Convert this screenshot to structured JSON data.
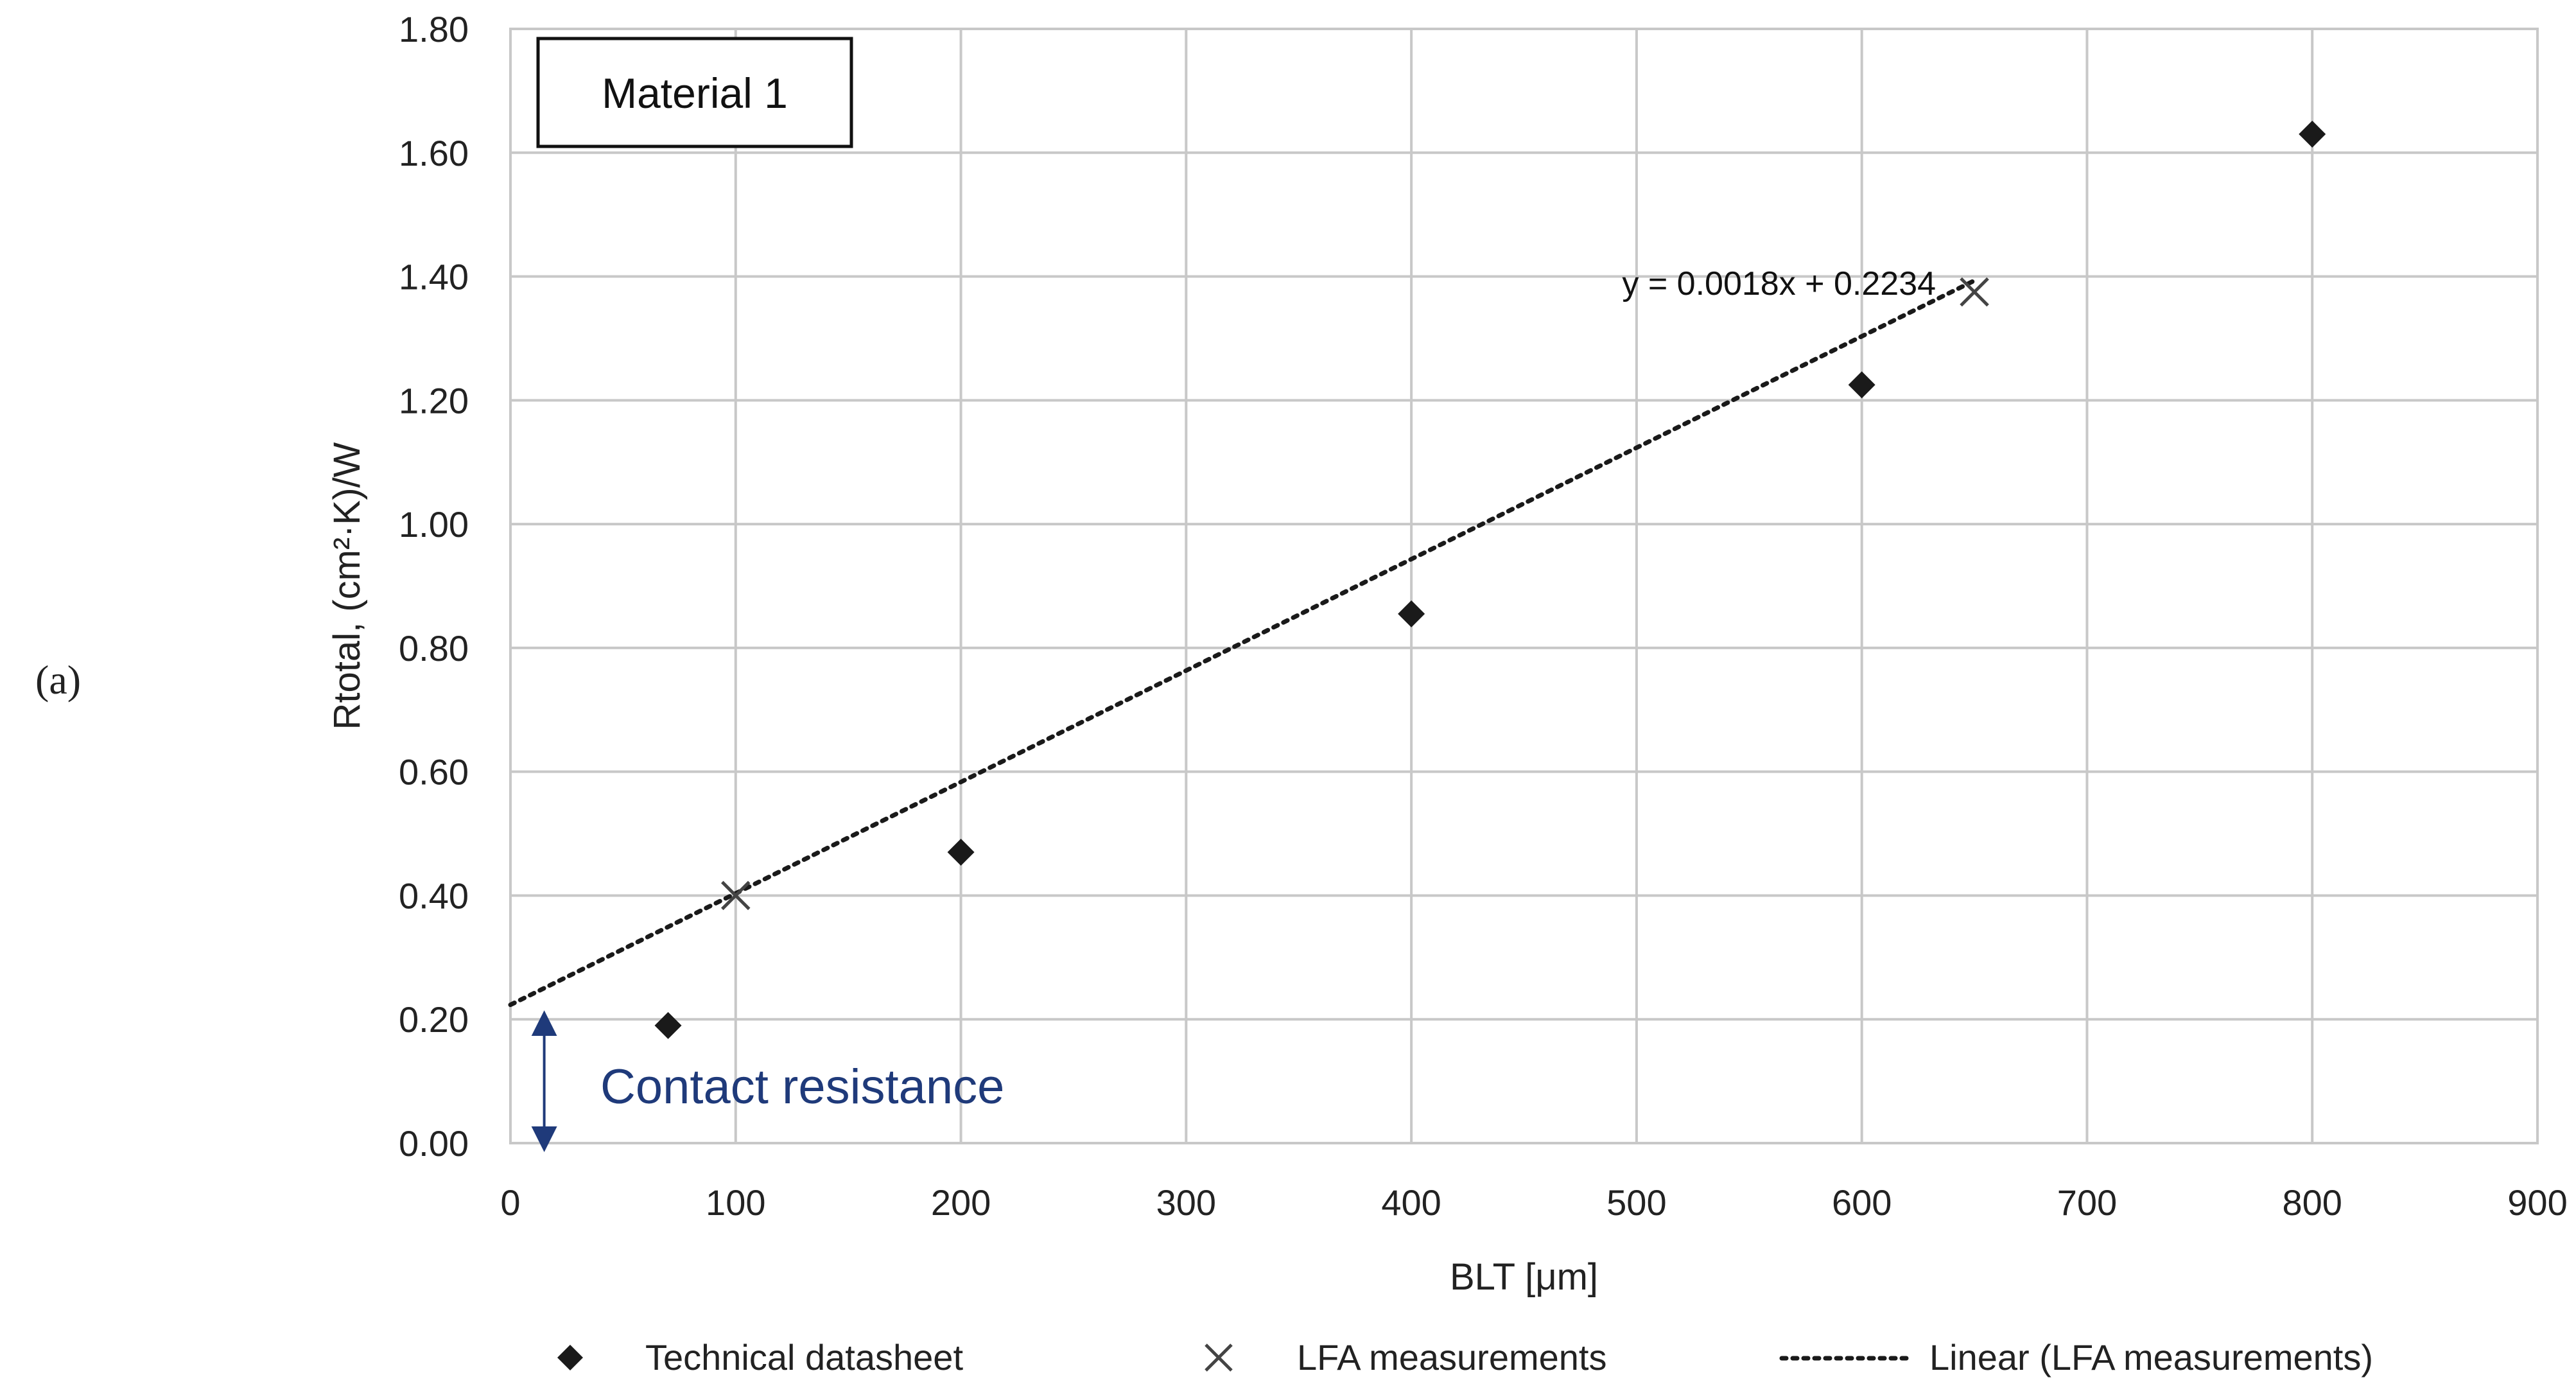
{
  "panel_label": "(a)",
  "colors": {
    "grid": "#c8c8c8",
    "plot_border": "#c8c8c8",
    "text": "#222222",
    "marker": "#1a1a1a",
    "cross": "#444444",
    "trendline": "#1a1a1a",
    "annotation": "#1f3a7a"
  },
  "chart_data": {
    "type": "scatter",
    "title": "Material 1",
    "xlabel": "BLT [μm]",
    "ylabel": "Rtotal, (cm²·K)/W",
    "xlim": [
      0,
      900
    ],
    "ylim": [
      0,
      1.8
    ],
    "x_ticks": [
      0,
      100,
      200,
      300,
      400,
      500,
      600,
      700,
      800,
      900
    ],
    "y_ticks": [
      0.0,
      0.2,
      0.4,
      0.6,
      0.8,
      1.0,
      1.2,
      1.4,
      1.6,
      1.8
    ],
    "x_tick_labels": [
      "0",
      "100",
      "200",
      "300",
      "400",
      "500",
      "600",
      "700",
      "800",
      "900"
    ],
    "y_tick_labels": [
      "0.00",
      "0.20",
      "0.40",
      "0.60",
      "0.80",
      "1.00",
      "1.20",
      "1.40",
      "1.60",
      "1.80"
    ],
    "grid": true,
    "legend_position": "bottom",
    "series": [
      {
        "name": "Technical datasheet",
        "marker": "diamond",
        "x": [
          70,
          200,
          400,
          600,
          800
        ],
        "y": [
          0.19,
          0.47,
          0.855,
          1.225,
          1.63
        ]
      },
      {
        "name": "LFA measurements",
        "marker": "cross",
        "x": [
          100,
          650
        ],
        "y": [
          0.4,
          1.375
        ]
      }
    ],
    "trendline": {
      "name": "Linear (LFA measurements)",
      "slope": 0.0018,
      "intercept": 0.2234,
      "x_range": [
        0,
        650
      ],
      "equation": "y = 0.0018x + 0.2234",
      "style": "dotted"
    },
    "annotation": {
      "text": "Contact resistance",
      "arrow_from": 0.0,
      "arrow_to": 0.2,
      "arrow_x": 15
    }
  }
}
